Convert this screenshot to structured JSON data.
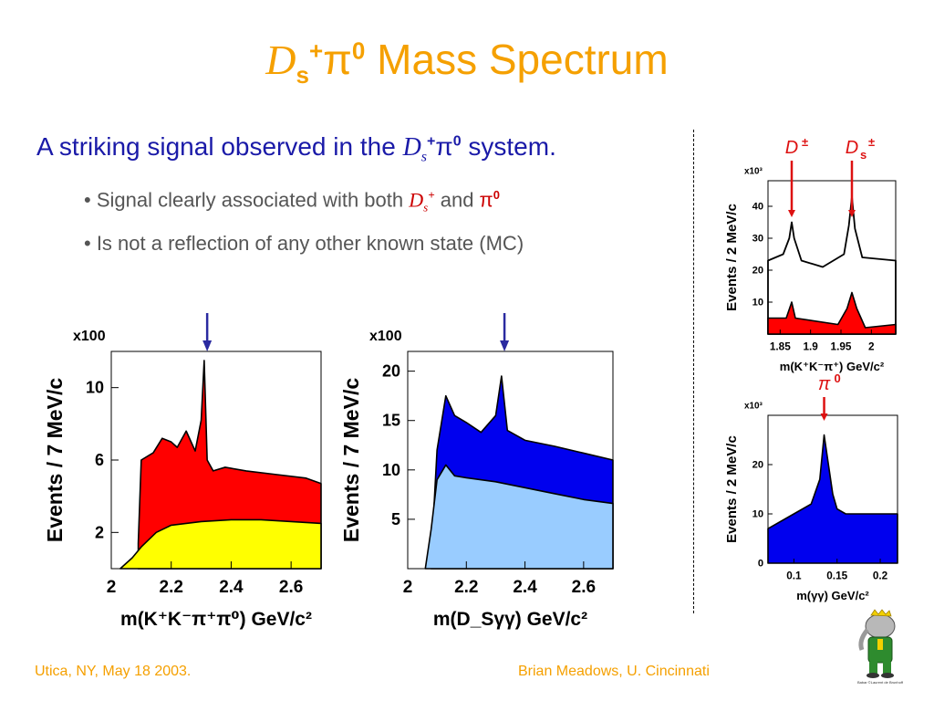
{
  "title": {
    "symbol": "D",
    "sub": "s",
    "sup": "+",
    "pi": "π",
    "pisup": "0",
    "rest": " Mass Spectrum"
  },
  "headline": {
    "pre": "A striking signal observed in the ",
    "symbol": "D",
    "sub": "s",
    "sup": "+",
    "pi": "π",
    "pisup": "0",
    "post": " system."
  },
  "bullets": [
    {
      "pre": "• Signal clearly associated with both ",
      "symbol": "D",
      "sub": "s",
      "sup": "+",
      "mid": " and ",
      "pi": "π",
      "pisup": "0"
    },
    {
      "text": "• Is not a reflection of any other known state (MC)"
    }
  ],
  "footer": {
    "left": "Utica, NY, May 18 2003.",
    "right": "Brian Meadows, U. Cincinnati"
  },
  "colors": {
    "title": "#f5a000",
    "headline": "#1a1aa8",
    "bullet": "#555555",
    "arrow_blue": "#2a2aa0",
    "arrow_red": "#dd1111"
  },
  "chart_data": [
    {
      "type": "area",
      "xlabel": "m(K⁺K⁻π⁺π⁰) GeV/c²",
      "ylabel": "Events / 7 MeV/c",
      "scale_label": "x100",
      "xlim": [
        2.0,
        2.7
      ],
      "ylim": [
        0,
        12
      ],
      "xticks": [
        2,
        2.2,
        2.4,
        2.6
      ],
      "yticks": [
        2,
        6,
        10
      ],
      "series": [
        {
          "color": "#ff0000",
          "x": [
            2.09,
            2.1,
            2.14,
            2.17,
            2.2,
            2.22,
            2.25,
            2.28,
            2.3,
            2.31,
            2.32,
            2.34,
            2.38,
            2.45,
            2.55,
            2.65,
            2.7
          ],
          "values": [
            1.4,
            6.0,
            6.4,
            7.2,
            7.0,
            6.7,
            7.6,
            6.5,
            8.2,
            11.5,
            6.0,
            5.4,
            5.6,
            5.4,
            5.2,
            5.0,
            4.7
          ]
        },
        {
          "color": "#ffff00",
          "x": [
            2.03,
            2.07,
            2.1,
            2.15,
            2.2,
            2.3,
            2.4,
            2.5,
            2.6,
            2.7
          ],
          "values": [
            0,
            0.6,
            1.2,
            2.0,
            2.4,
            2.6,
            2.7,
            2.7,
            2.6,
            2.5
          ]
        }
      ],
      "arrow_x": 2.32
    },
    {
      "type": "area",
      "xlabel": "m(D_Sγγ) GeV/c²",
      "ylabel": "Events / 7 MeV/c",
      "scale_label": "x100",
      "xlim": [
        2.0,
        2.7
      ],
      "ylim": [
        0,
        22
      ],
      "xticks": [
        2,
        2.2,
        2.4,
        2.6
      ],
      "yticks": [
        5,
        10,
        15,
        20
      ],
      "series": [
        {
          "color": "#0000ee",
          "x": [
            2.08,
            2.1,
            2.13,
            2.16,
            2.2,
            2.25,
            2.3,
            2.32,
            2.34,
            2.4,
            2.5,
            2.6,
            2.7
          ],
          "values": [
            1.0,
            12.0,
            17.5,
            15.5,
            14.8,
            13.8,
            15.5,
            19.5,
            14.0,
            13.0,
            12.4,
            11.7,
            11.0
          ]
        },
        {
          "color": "#99ccff",
          "x": [
            2.06,
            2.08,
            2.1,
            2.13,
            2.16,
            2.2,
            2.3,
            2.4,
            2.5,
            2.6,
            2.7
          ],
          "values": [
            0,
            4.0,
            9.0,
            10.5,
            9.4,
            9.2,
            8.8,
            8.2,
            7.6,
            7.0,
            6.6
          ]
        }
      ],
      "arrow_x": 2.33
    },
    {
      "type": "area",
      "xlabel": "m(K⁺K⁻π⁺) GeV/c²",
      "ylabel": "Events / 2 MeV/c",
      "scale_label": "x10³",
      "xlim": [
        1.83,
        2.04
      ],
      "ylim": [
        0,
        48
      ],
      "xticks": [
        1.85,
        1.9,
        1.95,
        2.0
      ],
      "yticks": [
        10,
        20,
        30,
        40
      ],
      "series": [
        {
          "color": "#000000",
          "x": [
            1.83,
            1.855,
            1.865,
            1.869,
            1.873,
            1.885,
            1.92,
            1.955,
            1.963,
            1.968,
            1.973,
            1.985,
            2.04
          ],
          "values": [
            23,
            25,
            30,
            35,
            30,
            23,
            21,
            25,
            34,
            43,
            33,
            24,
            23
          ]
        },
        {
          "color": "#ff0000",
          "x": [
            1.83,
            1.86,
            1.869,
            1.875,
            1.945,
            1.96,
            1.968,
            1.976,
            1.99,
            2.04
          ],
          "values": [
            5,
            5,
            10,
            5,
            3,
            8,
            13,
            8,
            2,
            3
          ]
        }
      ],
      "legend": [
        {
          "label": "D",
          "sup": "±",
          "x": 1.869
        },
        {
          "label": "D",
          "sub": "s",
          "sup": "±",
          "x": 1.968
        }
      ]
    },
    {
      "type": "area",
      "xlabel": "m(γγ) GeV/c²",
      "ylabel": "Events / 2 MeV/c",
      "scale_label": "x10³",
      "xlim": [
        0.07,
        0.22
      ],
      "ylim": [
        0,
        30
      ],
      "xticks": [
        0.1,
        0.15,
        0.2
      ],
      "yticks": [
        0,
        10,
        20
      ],
      "series": [
        {
          "color": "#0000ee",
          "x": [
            0.07,
            0.1,
            0.12,
            0.13,
            0.135,
            0.14,
            0.145,
            0.15,
            0.16,
            0.18,
            0.2,
            0.22
          ],
          "values": [
            7,
            10,
            12,
            17,
            26,
            20,
            14,
            11,
            10,
            10,
            10,
            10
          ]
        }
      ],
      "legend": [
        {
          "label": "π",
          "sup": "0",
          "x": 0.135
        }
      ]
    }
  ],
  "logo_caption": "Babar ©Laurent de Brunhoff"
}
